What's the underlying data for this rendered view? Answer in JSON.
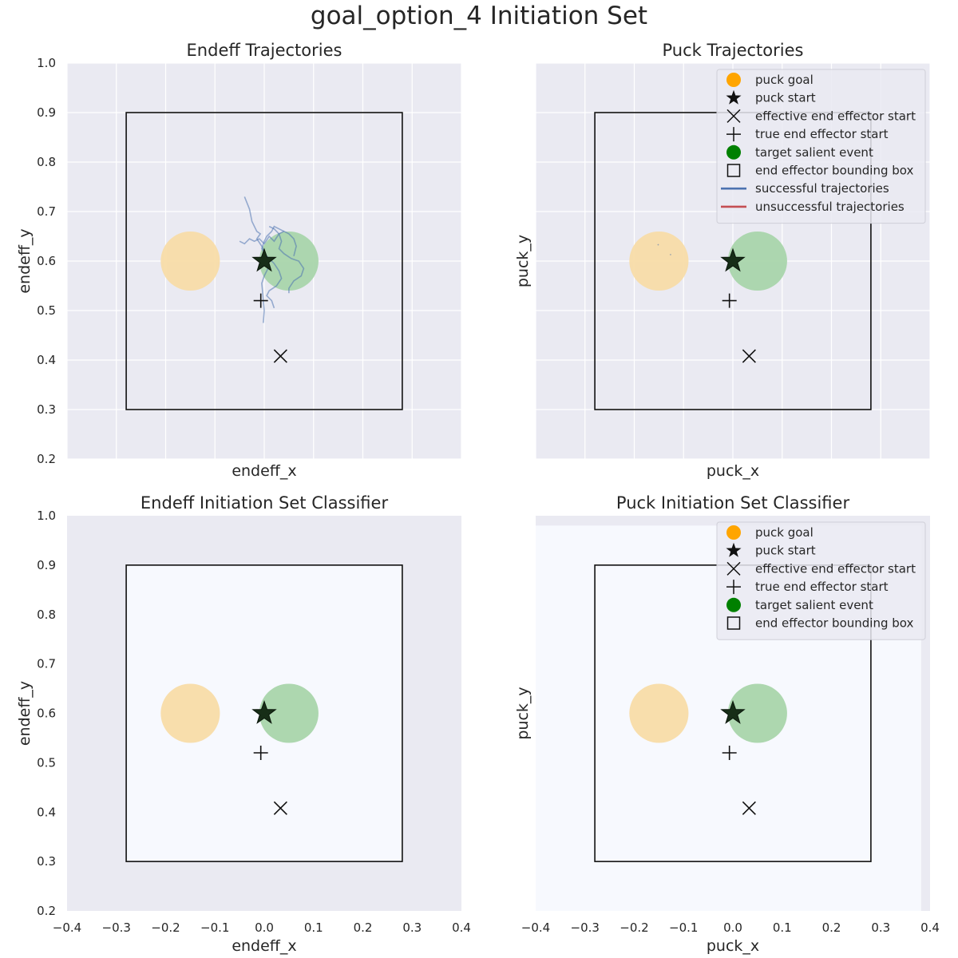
{
  "figure_title": "goal_option_4 Initiation Set",
  "chart_data": [
    {
      "type": "scatter",
      "title": "Endeff Trajectories",
      "xlabel": "endeff_x",
      "ylabel": "endeff_y",
      "xlim": [
        -0.4,
        0.4
      ],
      "ylim": [
        0.2,
        1.0
      ],
      "x_ticks_shown": false,
      "y_ticks_shown": true,
      "yticks": [
        "0.2",
        "0.3",
        "0.4",
        "0.5",
        "0.6",
        "0.7",
        "0.8",
        "0.9",
        "1.0"
      ],
      "grid": true,
      "background": "grid",
      "legend": false,
      "bounding_box": {
        "x0": -0.28,
        "x1": 0.28,
        "y0": 0.3,
        "y1": 0.9
      },
      "puck_goal": {
        "x": -0.15,
        "y": 0.6,
        "radius": 0.06
      },
      "target_salient_event": {
        "x": 0.05,
        "y": 0.6,
        "radius": 0.06
      },
      "puck_start": {
        "x": 0.0,
        "y": 0.6
      },
      "true_end_effector_start": {
        "x": -0.007,
        "y": 0.52
      },
      "effective_end_effector_start": {
        "x": 0.033,
        "y": 0.408
      },
      "successful_trajectories": [
        [
          [
            -0.04,
            0.73
          ],
          [
            -0.03,
            0.705
          ],
          [
            -0.025,
            0.68
          ],
          [
            -0.015,
            0.66
          ],
          [
            -0.008,
            0.655
          ],
          [
            -0.015,
            0.645
          ],
          [
            -0.005,
            0.63
          ],
          [
            0.0,
            0.62
          ],
          [
            0.005,
            0.605
          ],
          [
            0.01,
            0.59
          ],
          [
            0.0,
            0.57
          ],
          [
            -0.005,
            0.555
          ],
          [
            -0.003,
            0.535
          ],
          [
            0.0,
            0.5
          ],
          [
            -0.002,
            0.475
          ]
        ],
        [
          [
            -0.05,
            0.64
          ],
          [
            -0.04,
            0.635
          ],
          [
            -0.03,
            0.645
          ],
          [
            -0.02,
            0.64
          ],
          [
            -0.01,
            0.645
          ],
          [
            0.0,
            0.635
          ],
          [
            0.01,
            0.65
          ],
          [
            0.02,
            0.64
          ],
          [
            0.03,
            0.655
          ],
          [
            0.04,
            0.66
          ],
          [
            0.05,
            0.655
          ],
          [
            0.06,
            0.645
          ],
          [
            0.065,
            0.63
          ],
          [
            0.06,
            0.61
          ]
        ],
        [
          [
            0.01,
            0.67
          ],
          [
            0.02,
            0.665
          ],
          [
            0.03,
            0.655
          ],
          [
            0.035,
            0.64
          ],
          [
            0.03,
            0.625
          ],
          [
            0.04,
            0.615
          ],
          [
            0.055,
            0.605
          ],
          [
            0.07,
            0.6
          ],
          [
            0.08,
            0.585
          ],
          [
            0.075,
            0.57
          ],
          [
            0.06,
            0.56
          ],
          [
            0.05,
            0.545
          ],
          [
            0.05,
            0.535
          ]
        ],
        [
          [
            0.04,
            0.66
          ],
          [
            0.03,
            0.665
          ],
          [
            0.02,
            0.67
          ],
          [
            0.015,
            0.66
          ],
          [
            0.005,
            0.65
          ],
          [
            0.0,
            0.64
          ],
          [
            -0.005,
            0.625
          ],
          [
            0.005,
            0.61
          ],
          [
            0.02,
            0.595
          ],
          [
            0.03,
            0.58
          ],
          [
            0.035,
            0.565
          ],
          [
            0.025,
            0.55
          ],
          [
            0.01,
            0.54
          ],
          [
            0.005,
            0.53
          ],
          [
            0.015,
            0.52
          ],
          [
            0.02,
            0.505
          ]
        ]
      ]
    },
    {
      "type": "scatter",
      "title": "Puck Trajectories",
      "xlabel": "puck_x",
      "ylabel": "puck_y",
      "xlim": [
        -0.4,
        0.4
      ],
      "ylim": [
        0.2,
        1.0
      ],
      "x_ticks_shown": false,
      "y_ticks_shown": false,
      "grid": true,
      "background": "grid",
      "legend": true,
      "legend_position": "top-right",
      "bounding_box": {
        "x0": -0.28,
        "x1": 0.28,
        "y0": 0.3,
        "y1": 0.9
      },
      "puck_goal": {
        "x": -0.15,
        "y": 0.6,
        "radius": 0.06
      },
      "target_salient_event": {
        "x": 0.05,
        "y": 0.6,
        "radius": 0.06
      },
      "puck_start": {
        "x": 0.0,
        "y": 0.6
      },
      "true_end_effector_start": {
        "x": -0.007,
        "y": 0.52
      },
      "effective_end_effector_start": {
        "x": 0.033,
        "y": 0.408
      },
      "successful_trajectories": [
        [
          [
            -0.152,
            0.634
          ],
          [
            -0.151,
            0.632
          ]
        ],
        [
          [
            -0.127,
            0.614
          ],
          [
            -0.126,
            0.612
          ]
        ]
      ]
    },
    {
      "type": "heatmap",
      "title": "Endeff Initiation Set Classifier",
      "xlabel": "endeff_x",
      "ylabel": "endeff_y",
      "xlim": [
        -0.4,
        0.4
      ],
      "ylim": [
        0.2,
        1.0
      ],
      "x_ticks_shown": true,
      "y_ticks_shown": true,
      "xticks": [
        "−0.4",
        "−0.3",
        "−0.2",
        "−0.1",
        "0.0",
        "0.1",
        "0.2",
        "0.3",
        "0.4"
      ],
      "yticks": [
        "0.2",
        "0.3",
        "0.4",
        "0.5",
        "0.6",
        "0.7",
        "0.8",
        "0.9",
        "1.0"
      ],
      "grid": false,
      "legend": false,
      "classifier_region": {
        "x0": -0.28,
        "x1": 0.28,
        "y0": 0.3,
        "y1": 0.9
      },
      "bounding_box": {
        "x0": -0.28,
        "x1": 0.28,
        "y0": 0.3,
        "y1": 0.9
      },
      "puck_goal": {
        "x": -0.15,
        "y": 0.6,
        "radius": 0.06
      },
      "target_salient_event": {
        "x": 0.05,
        "y": 0.6,
        "radius": 0.06
      },
      "puck_start": {
        "x": 0.0,
        "y": 0.6
      },
      "true_end_effector_start": {
        "x": -0.007,
        "y": 0.52
      },
      "effective_end_effector_start": {
        "x": 0.033,
        "y": 0.408
      },
      "successful_trajectories": []
    },
    {
      "type": "heatmap",
      "title": "Puck Initiation Set Classifier",
      "xlabel": "puck_x",
      "ylabel": "puck_y",
      "xlim": [
        -0.4,
        0.4
      ],
      "ylim": [
        0.2,
        1.0
      ],
      "x_ticks_shown": true,
      "y_ticks_shown": false,
      "xticks": [
        "−0.4",
        "−0.3",
        "−0.2",
        "−0.1",
        "0.0",
        "0.1",
        "0.2",
        "0.3",
        "0.4"
      ],
      "grid": false,
      "legend": true,
      "legend_position": "top-right",
      "classifier_region": {
        "x0": -0.4,
        "x1": 0.382,
        "y0": 0.2,
        "y1": 0.98
      },
      "bounding_box": {
        "x0": -0.28,
        "x1": 0.28,
        "y0": 0.3,
        "y1": 0.9
      },
      "puck_goal": {
        "x": -0.15,
        "y": 0.6,
        "radius": 0.06
      },
      "target_salient_event": {
        "x": 0.05,
        "y": 0.6,
        "radius": 0.06
      },
      "puck_start": {
        "x": 0.0,
        "y": 0.6
      },
      "true_end_effector_start": {
        "x": -0.007,
        "y": 0.52
      },
      "effective_end_effector_start": {
        "x": 0.033,
        "y": 0.408
      },
      "successful_trajectories": []
    }
  ],
  "legend_entries_full": [
    {
      "label": "puck goal",
      "marker": "circle",
      "color": "#ffa500"
    },
    {
      "label": "puck start",
      "marker": "star",
      "color": "#111111"
    },
    {
      "label": "effective end effector start",
      "marker": "x",
      "color": "#111111"
    },
    {
      "label": "true end effector start",
      "marker": "plus",
      "color": "#111111"
    },
    {
      "label": "target salient event",
      "marker": "circle",
      "color": "#008000"
    },
    {
      "label": "end effector bounding box",
      "marker": "square",
      "color": "#111111"
    },
    {
      "label": "successful trajectories",
      "marker": "line",
      "color": "#4c72b0"
    },
    {
      "label": "unsuccessful trajectories",
      "marker": "line",
      "color": "#c44e52"
    }
  ],
  "legend_entries_classifier": [
    {
      "label": "puck goal",
      "marker": "circle",
      "color": "#ffa500"
    },
    {
      "label": "puck start",
      "marker": "star",
      "color": "#111111"
    },
    {
      "label": "effective end effector start",
      "marker": "x",
      "color": "#111111"
    },
    {
      "label": "true end effector start",
      "marker": "plus",
      "color": "#111111"
    },
    {
      "label": "target salient event",
      "marker": "circle",
      "color": "#008000"
    },
    {
      "label": "end effector bounding box",
      "marker": "square",
      "color": "#111111"
    }
  ],
  "colors": {
    "axes_bg": "#eaeaf2",
    "grid": "#ffffff",
    "classifier_positive": "#f7f9fe",
    "goal_fill": "#f8dca8",
    "target_fill": "#a9d5ab",
    "trajectory": "#4c72b0",
    "marker": "#111111"
  }
}
